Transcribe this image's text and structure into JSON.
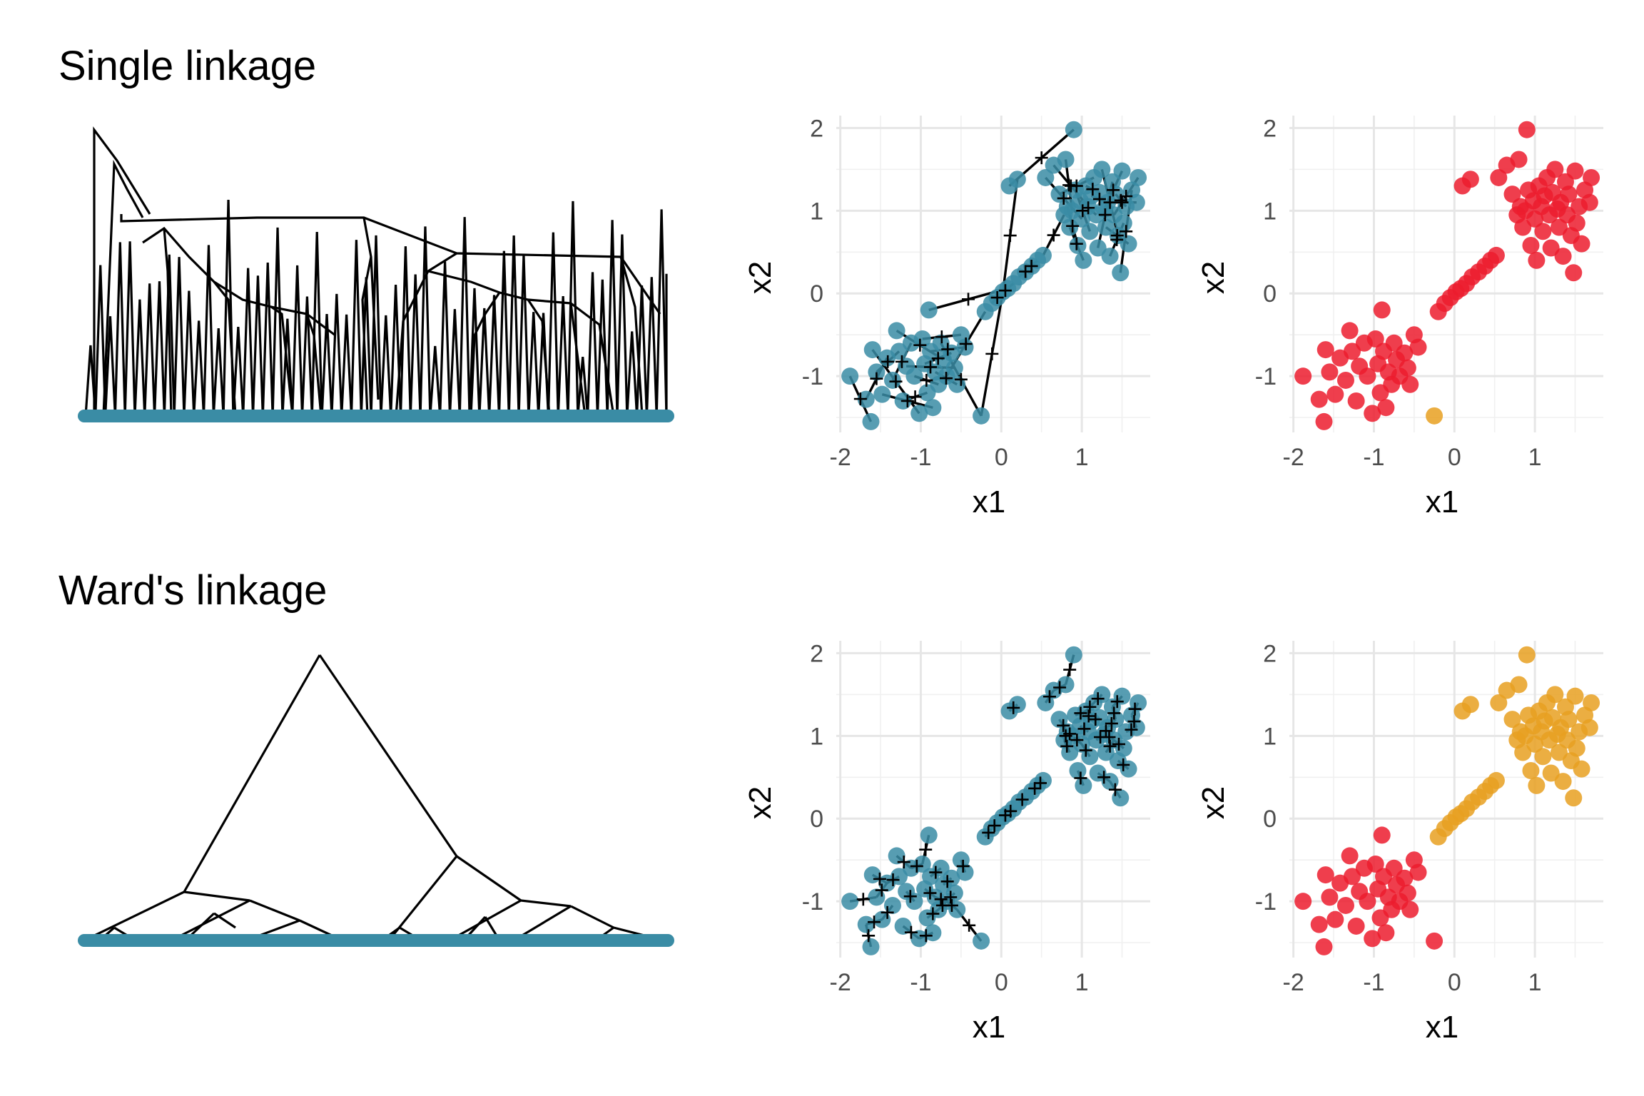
{
  "rows": [
    {
      "title": "Single linkage",
      "method": "single"
    },
    {
      "title": "Ward's linkage",
      "method": "ward"
    }
  ],
  "colors": {
    "leaf": "#3a8ca5",
    "point": "#3a8ca5",
    "cluster_red": "#ec1c2e",
    "cluster_orange": "#e7a021",
    "grid": "#e6e6e6",
    "line": "#000000"
  },
  "chart_data": [
    {
      "type": "scatter",
      "panel": "single-linkage-connections",
      "xlabel": "x1",
      "ylabel": "x2",
      "xlim": [
        -2.05,
        1.85
      ],
      "ylim": [
        -1.68,
        2.15
      ],
      "xticks": [
        "-2",
        "-1",
        "0",
        "1"
      ],
      "xtick_values": [
        -2,
        -1,
        0,
        1
      ],
      "yticks": [
        "-1",
        "0",
        "1",
        "2"
      ],
      "ytick_values": [
        -1,
        0,
        1,
        2
      ],
      "points_shown_as": "filled circles with merge-centroid crosses and connecting segments"
    },
    {
      "type": "scatter",
      "panel": "single-linkage-clusters",
      "xlabel": "x1",
      "ylabel": "x2",
      "xlim": [
        -2.05,
        1.85
      ],
      "ylim": [
        -1.68,
        2.15
      ],
      "xticks": [
        "-2",
        "-1",
        "0",
        "1"
      ],
      "xtick_values": [
        -2,
        -1,
        0,
        1
      ],
      "yticks": [
        "-1",
        "0",
        "1",
        "2"
      ],
      "ytick_values": [
        -1,
        0,
        1,
        2
      ],
      "cluster_assignment": "all points in cluster 1 (red) except the point at (-0.25, -1.48) in cluster 2 (orange)"
    },
    {
      "type": "scatter",
      "panel": "ward-linkage-connections",
      "xlabel": "x1",
      "ylabel": "x2",
      "xlim": [
        -2.05,
        1.85
      ],
      "ylim": [
        -1.68,
        2.15
      ],
      "xticks": [
        "-2",
        "-1",
        "0",
        "1"
      ],
      "xtick_values": [
        -2,
        -1,
        0,
        1
      ],
      "yticks": [
        "-1",
        "0",
        "1",
        "2"
      ],
      "ytick_values": [
        -1,
        0,
        1,
        2
      ]
    },
    {
      "type": "scatter",
      "panel": "ward-linkage-clusters",
      "xlabel": "x1",
      "ylabel": "x2",
      "xlim": [
        -2.05,
        1.85
      ],
      "ylim": [
        -1.68,
        2.15
      ],
      "xticks": [
        "-2",
        "-1",
        "0",
        "1"
      ],
      "xtick_values": [
        -2,
        -1,
        0,
        1
      ],
      "yticks": [
        "-1",
        "0",
        "1",
        "2"
      ],
      "ytick_values": [
        -1,
        0,
        1,
        2
      ],
      "cluster_assignment": "points with x1 + x2 < -0.5 in cluster 1 (red), the rest in cluster 2 (orange)"
    }
  ],
  "points": [
    [
      -1.88,
      -1.0
    ],
    [
      -1.68,
      -1.28
    ],
    [
      -1.62,
      -1.55
    ],
    [
      -1.6,
      -0.68
    ],
    [
      -1.55,
      -0.95
    ],
    [
      -1.48,
      -1.22
    ],
    [
      -1.42,
      -0.78
    ],
    [
      -1.35,
      -1.05
    ],
    [
      -1.3,
      -0.45
    ],
    [
      -1.27,
      -0.7
    ],
    [
      -1.22,
      -1.3
    ],
    [
      -1.18,
      -0.88
    ],
    [
      -1.12,
      -0.6
    ],
    [
      -1.08,
      -1.0
    ],
    [
      -1.02,
      -1.45
    ],
    [
      -0.98,
      -0.55
    ],
    [
      -0.95,
      -0.85
    ],
    [
      -0.92,
      -1.2
    ],
    [
      -0.9,
      -0.2
    ],
    [
      -0.88,
      -0.7
    ],
    [
      -0.85,
      -1.38
    ],
    [
      -0.82,
      -0.95
    ],
    [
      -0.78,
      -1.1
    ],
    [
      -0.75,
      -0.6
    ],
    [
      -0.72,
      -0.8
    ],
    [
      -0.68,
      -1.0
    ],
    [
      -0.62,
      -0.72
    ],
    [
      -0.58,
      -0.9
    ],
    [
      -0.55,
      -1.1
    ],
    [
      -0.5,
      -0.5
    ],
    [
      -0.45,
      -0.65
    ],
    [
      -0.25,
      -1.48
    ],
    [
      -0.2,
      -0.22
    ],
    [
      -0.12,
      -0.12
    ],
    [
      -0.05,
      -0.05
    ],
    [
      0.02,
      0.02
    ],
    [
      0.08,
      0.06
    ],
    [
      0.15,
      0.12
    ],
    [
      0.22,
      0.2
    ],
    [
      0.3,
      0.26
    ],
    [
      0.38,
      0.33
    ],
    [
      0.45,
      0.4
    ],
    [
      0.52,
      0.46
    ],
    [
      0.1,
      1.3
    ],
    [
      0.2,
      1.38
    ],
    [
      0.55,
      1.4
    ],
    [
      0.65,
      1.55
    ],
    [
      0.72,
      1.2
    ],
    [
      0.78,
      0.95
    ],
    [
      0.8,
      1.62
    ],
    [
      0.82,
      1.05
    ],
    [
      0.85,
      0.8
    ],
    [
      0.88,
      1.0
    ],
    [
      0.9,
      1.98
    ],
    [
      0.92,
      1.25
    ],
    [
      0.95,
      0.58
    ],
    [
      0.98,
      1.12
    ],
    [
      1.0,
      0.9
    ],
    [
      1.02,
      0.4
    ],
    [
      1.05,
      1.3
    ],
    [
      1.08,
      1.05
    ],
    [
      1.1,
      0.75
    ],
    [
      1.12,
      1.18
    ],
    [
      1.15,
      1.4
    ],
    [
      1.18,
      0.95
    ],
    [
      1.2,
      0.55
    ],
    [
      1.22,
      1.22
    ],
    [
      1.25,
      1.5
    ],
    [
      1.28,
      1.02
    ],
    [
      1.3,
      0.8
    ],
    [
      1.32,
      1.1
    ],
    [
      1.35,
      0.45
    ],
    [
      1.38,
      1.35
    ],
    [
      1.4,
      0.95
    ],
    [
      1.42,
      1.2
    ],
    [
      1.45,
      0.7
    ],
    [
      1.48,
      0.25
    ],
    [
      1.5,
      1.48
    ],
    [
      1.52,
      0.85
    ],
    [
      1.55,
      1.05
    ],
    [
      1.58,
      0.6
    ],
    [
      1.62,
      1.25
    ],
    [
      1.7,
      1.4
    ],
    [
      1.68,
      1.1
    ]
  ],
  "single_merge_pairs": [
    [
      0,
      2
    ],
    [
      1,
      6
    ],
    [
      3,
      14
    ],
    [
      4,
      9
    ],
    [
      5,
      20
    ],
    [
      7,
      12
    ],
    [
      8,
      24
    ],
    [
      10,
      17
    ],
    [
      11,
      27
    ],
    [
      13,
      22
    ],
    [
      15,
      29
    ],
    [
      16,
      26
    ],
    [
      18,
      36
    ],
    [
      19,
      30
    ],
    [
      21,
      28
    ],
    [
      23,
      31
    ],
    [
      25,
      32
    ],
    [
      33,
      35
    ],
    [
      34,
      37
    ],
    [
      38,
      40
    ],
    [
      39,
      41
    ],
    [
      42,
      48
    ],
    [
      43,
      53
    ],
    [
      44,
      35
    ],
    [
      45,
      57
    ],
    [
      46,
      60
    ],
    [
      47,
      63
    ],
    [
      49,
      52
    ],
    [
      50,
      55
    ],
    [
      51,
      58
    ],
    [
      54,
      61
    ],
    [
      56,
      64
    ],
    [
      59,
      66
    ],
    [
      62,
      70
    ],
    [
      65,
      72
    ],
    [
      67,
      75
    ],
    [
      68,
      77
    ],
    [
      69,
      80
    ],
    [
      71,
      78
    ],
    [
      73,
      82
    ],
    [
      74,
      79
    ],
    [
      76,
      81
    ],
    [
      83,
      70
    ],
    [
      31,
      35
    ]
  ]
}
